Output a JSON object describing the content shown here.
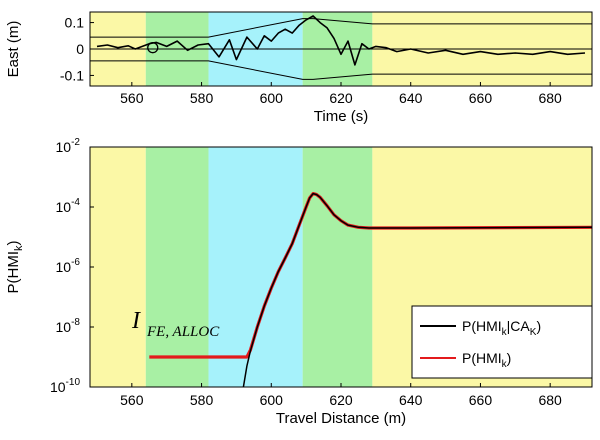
{
  "chart_data": [
    {
      "type": "line",
      "panel": "top",
      "xlabel": "Time (s)",
      "ylabel": "East (m)",
      "xlim": [
        548,
        692
      ],
      "ylim": [
        -0.14,
        0.14
      ],
      "xticks": [
        "560",
        "580",
        "600",
        "620",
        "640",
        "660",
        "680"
      ],
      "yticks": [
        "0.1",
        "0",
        "-0.1"
      ],
      "ytick_values": [
        0.1,
        0,
        -0.1
      ],
      "bands": [
        {
          "x0": 548,
          "x1": 564,
          "color": "#fbf8a6"
        },
        {
          "x0": 564,
          "x1": 582,
          "color": "#a8f0a4"
        },
        {
          "x0": 582,
          "x1": 609,
          "color": "#a6f2fb"
        },
        {
          "x0": 609,
          "x1": 629,
          "color": "#a8f0a4"
        },
        {
          "x0": 629,
          "x1": 692,
          "color": "#fbf8a6"
        }
      ],
      "series": [
        {
          "role": "error",
          "color": "#000000",
          "x": [
            550,
            553,
            556,
            559,
            561,
            563,
            565,
            567,
            570,
            573,
            576,
            579,
            582,
            585,
            588,
            590,
            593,
            596,
            598,
            600,
            602,
            604,
            606,
            608,
            610,
            612,
            614,
            616,
            618,
            620,
            622,
            624,
            626,
            628,
            630,
            633,
            636,
            640,
            645,
            650,
            655,
            660,
            665,
            670,
            675,
            680,
            685,
            690
          ],
          "y": [
            0.01,
            0.015,
            0.005,
            0.012,
            0.0,
            0.01,
            0.02,
            0.025,
            0.01,
            0.03,
            -0.005,
            0.015,
            0.02,
            -0.03,
            0.035,
            -0.04,
            0.045,
            0.0,
            0.05,
            0.03,
            0.06,
            0.075,
            0.06,
            0.09,
            0.11,
            0.125,
            0.1,
            0.08,
            0.04,
            -0.02,
            0.03,
            -0.06,
            0.02,
            0.0,
            0.01,
            0.005,
            -0.01,
            0.0,
            -0.015,
            -0.005,
            -0.02,
            -0.01,
            -0.02,
            -0.015,
            -0.02,
            -0.01,
            -0.02,
            -0.015
          ]
        },
        {
          "role": "upper-bound",
          "color": "#000000",
          "x": [
            548,
            582,
            609,
            612,
            629,
            692
          ],
          "y": [
            0.045,
            0.045,
            0.115,
            0.115,
            0.095,
            0.095
          ]
        },
        {
          "role": "lower-bound",
          "color": "#000000",
          "x": [
            548,
            582,
            609,
            612,
            629,
            692
          ],
          "y": [
            -0.045,
            -0.045,
            -0.115,
            -0.115,
            -0.095,
            -0.095
          ]
        },
        {
          "role": "zero-line",
          "color": "#000000",
          "x": [
            548,
            692
          ],
          "y": [
            0.0,
            0.0
          ]
        }
      ],
      "marker": {
        "x": 566,
        "y": 0.005,
        "shape": "open-circle"
      }
    },
    {
      "type": "line",
      "panel": "bottom",
      "xlabel": "Travel Distance (m)",
      "ylabel": "P(HMI",
      "ylabel_sub": "k",
      "ylabel_close": ")",
      "y_scale": "log",
      "xlim": [
        548,
        692
      ],
      "ylim": [
        1e-10,
        0.01
      ],
      "xticks": [
        "560",
        "580",
        "600",
        "620",
        "640",
        "660",
        "680"
      ],
      "ytick_exponents": [
        "-2",
        "-4",
        "-6",
        "-8",
        "-10"
      ],
      "ytick_base": "10",
      "bands": [
        {
          "x0": 548,
          "x1": 564,
          "color": "#fbf8a6"
        },
        {
          "x0": 564,
          "x1": 582,
          "color": "#a8f0a4"
        },
        {
          "x0": 582,
          "x1": 609,
          "color": "#a6f2fb"
        },
        {
          "x0": 609,
          "x1": 629,
          "color": "#a8f0a4"
        },
        {
          "x0": 629,
          "x1": 692,
          "color": "#fbf8a6"
        }
      ],
      "annotation": {
        "main": "I",
        "sub": "FE, ALLOC"
      },
      "legend": {
        "placement": "bottom-right",
        "entries": [
          {
            "text": "P(HMI",
            "sub1": "k",
            "mid": "|CA",
            "sub2": "K",
            "close": ")",
            "color": "#000000"
          },
          {
            "text": "P(HMI",
            "sub1": "k",
            "mid": "",
            "sub2": "",
            "close": ")",
            "color": "#e31a1c"
          }
        ]
      },
      "series": [
        {
          "role": "P(HMI_k|CA_K)",
          "color": "#000000",
          "x": [
            592,
            593,
            594,
            596,
            598,
            600,
            602,
            604,
            606,
            608,
            610,
            611,
            612,
            613,
            614,
            616,
            618,
            620,
            622,
            625,
            628,
            632,
            640,
            692
          ],
          "y": [
            1e-10,
            5e-10,
            1.6e-09,
            1e-08,
            5e-08,
            2e-07,
            7e-07,
            2e-06,
            6e-06,
            2.5e-05,
            0.0001,
            0.0002,
            0.00028,
            0.00026,
            0.00021,
            0.00011,
            5.5e-05,
            3.5e-05,
            2.5e-05,
            2.1e-05,
            2e-05,
            2e-05,
            2e-05,
            2.1e-05
          ]
        },
        {
          "role": "P(HMI_k)",
          "color": "#e31a1c",
          "x": [
            565,
            590,
            593,
            594,
            596,
            598,
            600,
            602,
            604,
            606,
            608,
            610,
            611,
            612,
            613,
            614,
            616,
            618,
            620,
            622,
            625,
            628,
            632,
            640,
            692
          ],
          "y": [
            1e-09,
            1e-09,
            1e-09,
            1.7e-09,
            1e-08,
            5e-08,
            2e-07,
            7e-07,
            2e-06,
            6e-06,
            2.5e-05,
            0.0001,
            0.0002,
            0.00028,
            0.00026,
            0.00021,
            0.00011,
            5.5e-05,
            3.5e-05,
            2.5e-05,
            2.1e-05,
            2e-05,
            2e-05,
            2e-05,
            2.1e-05
          ]
        }
      ]
    }
  ]
}
